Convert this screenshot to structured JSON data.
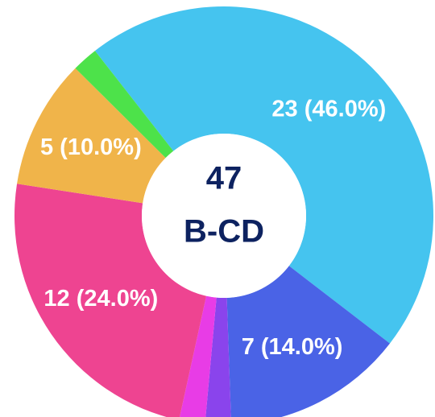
{
  "chart_data": {
    "type": "donut",
    "values": [
      23,
      7,
      1,
      1,
      12,
      5,
      1
    ],
    "value_labels": [
      "23 (46.0%)",
      "7 (14.0%)",
      null,
      null,
      "12 (24.0%)",
      "5 (10.0%)",
      null
    ],
    "colors": [
      "#45c4ef",
      "#4a63e6",
      "#8a44ec",
      "#e83ce6",
      "#ee4491",
      "#f0b44a",
      "#4de24a"
    ],
    "center_value": "47",
    "center_text": "B-CD"
  }
}
